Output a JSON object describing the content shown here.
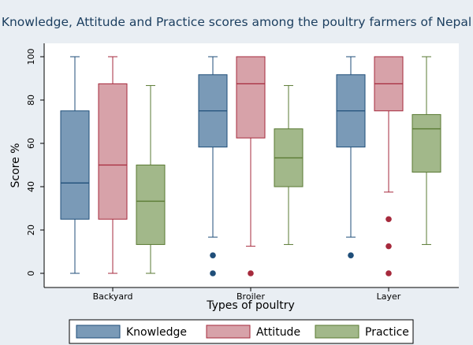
{
  "chart_data": {
    "type": "box",
    "title": "Knowledge, Attitude and Practice scores among the poultry farmers of Nepal",
    "xlabel": "Types of poultry",
    "ylabel": "Score %",
    "ylim": [
      0,
      100
    ],
    "yticks": [
      0,
      20,
      40,
      60,
      80,
      100
    ],
    "grid": false,
    "legend_position": "bottom",
    "categories": [
      "Backyard",
      "Broiler",
      "Layer"
    ],
    "series": [
      {
        "name": "Knowledge",
        "color": "#7a9ab7",
        "stroke": "#1f4e79",
        "boxes": [
          {
            "whisker_low": 0,
            "q1": 25,
            "median": 41.7,
            "q3": 75,
            "whisker_high": 100,
            "outliers": []
          },
          {
            "whisker_low": 16.7,
            "q1": 58.3,
            "median": 75,
            "q3": 91.7,
            "whisker_high": 100,
            "outliers": [
              8.3,
              0
            ]
          },
          {
            "whisker_low": 16.7,
            "q1": 58.3,
            "median": 75,
            "q3": 91.7,
            "whisker_high": 100,
            "outliers": [
              8.3
            ]
          }
        ]
      },
      {
        "name": "Attitude",
        "color": "#d7a2a9",
        "stroke": "#a62a3c",
        "boxes": [
          {
            "whisker_low": 0,
            "q1": 25,
            "median": 50,
            "q3": 87.5,
            "whisker_high": 100,
            "outliers": []
          },
          {
            "whisker_low": 12.5,
            "q1": 62.5,
            "median": 87.5,
            "q3": 100,
            "whisker_high": 100,
            "outliers": [
              0
            ]
          },
          {
            "whisker_low": 37.5,
            "q1": 75,
            "median": 87.5,
            "q3": 100,
            "whisker_high": 100,
            "outliers": [
              25,
              12.5,
              0
            ]
          }
        ]
      },
      {
        "name": "Practice",
        "color": "#a2b88a",
        "stroke": "#5a7a33",
        "boxes": [
          {
            "whisker_low": 0,
            "q1": 13.3,
            "median": 33.3,
            "q3": 50,
            "whisker_high": 86.7,
            "outliers": []
          },
          {
            "whisker_low": 13.3,
            "q1": 40,
            "median": 53.3,
            "q3": 66.7,
            "whisker_high": 86.7,
            "outliers": []
          },
          {
            "whisker_low": 13.3,
            "q1": 46.7,
            "median": 66.7,
            "q3": 73.3,
            "whisker_high": 100,
            "outliers": []
          }
        ]
      }
    ]
  }
}
